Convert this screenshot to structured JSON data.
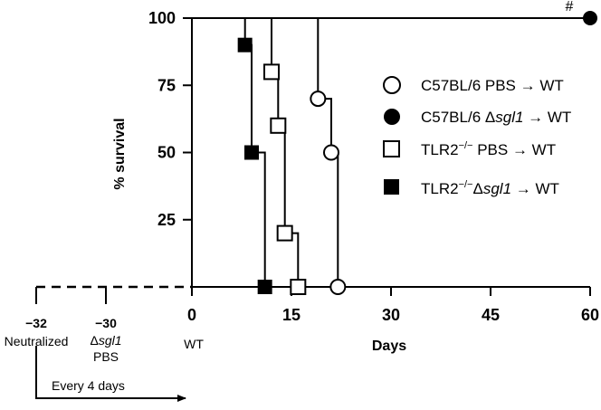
{
  "chart_data": {
    "type": "line",
    "step": true,
    "ylabel": "% survival",
    "xlabel": "Days",
    "xlim": [
      0,
      60
    ],
    "ylim": [
      0,
      100
    ],
    "xticks": [
      "0",
      "15",
      "30",
      "45",
      "60"
    ],
    "yticks": [
      "25",
      "50",
      "75",
      "100"
    ],
    "annotation": "#",
    "legend_position": "right",
    "series": [
      {
        "name": "C57BL/6 PBS → WT",
        "name_parts": [
          "C57BL/6 PBS → WT"
        ],
        "marker": "circle-open",
        "points": [
          [
            0,
            100
          ],
          [
            19,
            100
          ],
          [
            19,
            70
          ],
          [
            21,
            70
          ],
          [
            21,
            50
          ],
          [
            22,
            50
          ],
          [
            22,
            0
          ]
        ]
      },
      {
        "name": "C57BL/6 Δsgl1 → WT",
        "name_parts": [
          "C57BL/6 Δ",
          "sgl1",
          " → WT"
        ],
        "marker": "circle-filled",
        "points": [
          [
            0,
            100
          ],
          [
            60,
            100
          ]
        ]
      },
      {
        "name": "TLR2−/− PBS → WT",
        "name_parts": [
          "TLR2",
          "−/−",
          " PBS → WT"
        ],
        "marker": "square-open",
        "points": [
          [
            0,
            100
          ],
          [
            12,
            100
          ],
          [
            12,
            80
          ],
          [
            13,
            80
          ],
          [
            13,
            60
          ],
          [
            14,
            60
          ],
          [
            14,
            20
          ],
          [
            16,
            20
          ],
          [
            16,
            0
          ]
        ]
      },
      {
        "name": "TLR2−/−Δsgl1 → WT",
        "name_parts": [
          "TLR2",
          "−/−",
          "Δ",
          "sgl1",
          " → WT"
        ],
        "marker": "square-filled",
        "points": [
          [
            0,
            100
          ],
          [
            8,
            100
          ],
          [
            8,
            90
          ],
          [
            9,
            90
          ],
          [
            9,
            50
          ],
          [
            11,
            50
          ],
          [
            11,
            0
          ]
        ]
      }
    ],
    "timeline": {
      "events": [
        {
          "day": "−32",
          "label": "Neutralized"
        },
        {
          "day": "−30",
          "label_prefix": "Δ",
          "label_italic": "sgl1",
          "label2": "PBS"
        },
        {
          "day": "",
          "label": "WT"
        }
      ],
      "repeat_label": "Every 4 days"
    }
  }
}
